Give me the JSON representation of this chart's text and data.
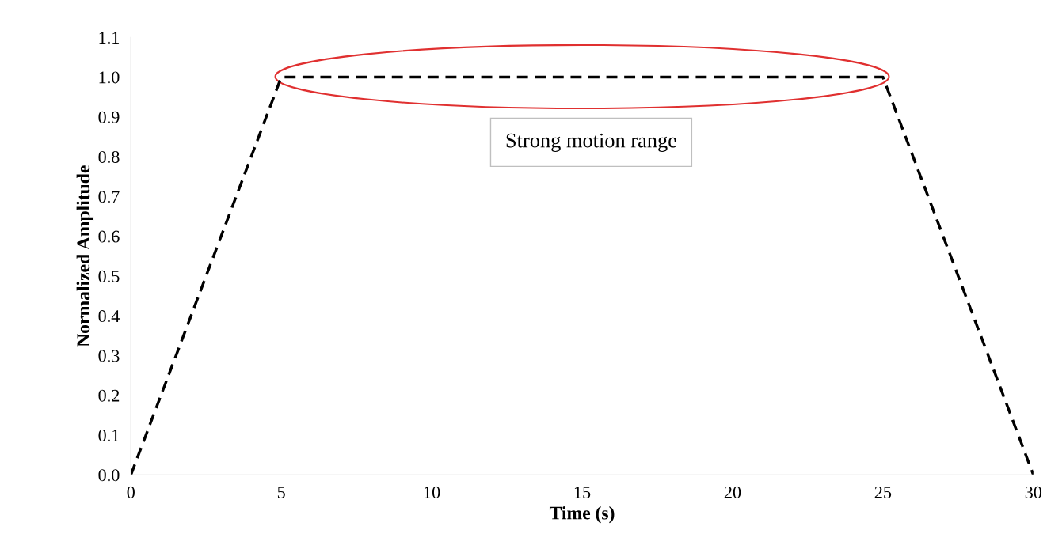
{
  "chart_data": {
    "type": "line",
    "xlabel": "Time (s)",
    "ylabel": "Normalized Amplitude",
    "x": [
      0,
      5,
      25,
      30
    ],
    "series": [
      {
        "color": "#000000",
        "values": [
          0,
          1,
          1,
          0
        ]
      }
    ],
    "line_style": "dashed",
    "xlim": [
      0,
      30
    ],
    "xticks": [
      0,
      5,
      10,
      15,
      20,
      25,
      30
    ],
    "ylim": [
      0,
      1.1
    ],
    "yticks": [
      {
        "value": 0,
        "label": "0.0"
      },
      0.1,
      0.2,
      0.3,
      0.4,
      0.5,
      0.6,
      0.7,
      0.8,
      0.9,
      {
        "value": 1,
        "label": "1.0"
      },
      1.1
    ],
    "annotations": [
      "Strong motion range"
    ],
    "grid": false,
    "legend": false
  }
}
